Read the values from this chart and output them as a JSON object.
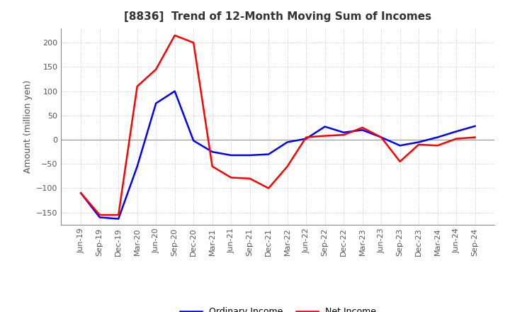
{
  "title": "[8836]  Trend of 12-Month Moving Sum of Incomes",
  "ylabel": "Amount (million yen)",
  "ylim": [
    -175,
    230
  ],
  "yticks": [
    -150,
    -100,
    -50,
    0,
    50,
    100,
    150,
    200
  ],
  "background_color": "#ffffff",
  "plot_bg_color": "#ffffff",
  "ordinary_income_color": "#0000ff",
  "net_income_color": "#ff0000",
  "line_width": 1.8,
  "x_labels": [
    "Jun-19",
    "Sep-19",
    "Dec-19",
    "Mar-20",
    "Jun-20",
    "Sep-20",
    "Dec-20",
    "Mar-21",
    "Jun-21",
    "Sep-21",
    "Dec-21",
    "Mar-22",
    "Jun-22",
    "Sep-22",
    "Dec-22",
    "Mar-23",
    "Jun-23",
    "Sep-23",
    "Dec-23",
    "Mar-24",
    "Jun-24",
    "Sep-24"
  ],
  "ordinary_income": [
    -110,
    -160,
    -163,
    -55,
    75,
    100,
    -2,
    -25,
    -32,
    -32,
    -30,
    -5,
    2,
    27,
    15,
    20,
    5,
    -12,
    -5,
    5,
    17,
    28
  ],
  "net_income": [
    -110,
    -155,
    -155,
    110,
    145,
    215,
    200,
    -55,
    -78,
    -80,
    -100,
    -55,
    5,
    8,
    10,
    25,
    5,
    -45,
    -10,
    -12,
    2,
    5
  ],
  "legend_labels": [
    "Ordinary Income",
    "Net Income"
  ],
  "title_fontsize": 11,
  "axis_fontsize": 8,
  "ylabel_fontsize": 9,
  "legend_fontsize": 9
}
